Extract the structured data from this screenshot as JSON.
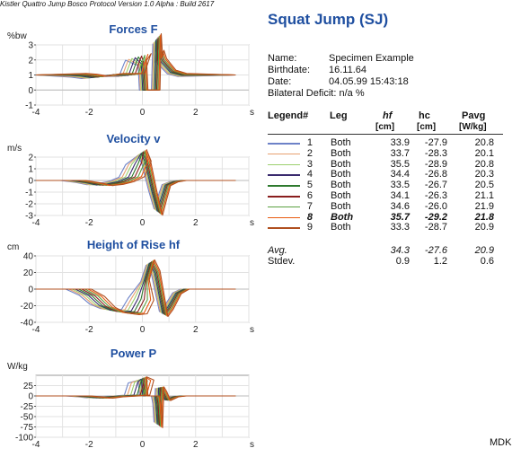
{
  "header": {
    "title": "Squat Jump (SJ)",
    "subtitle": "Kistler Quattro Jump Bosco Protocol Version 1.0 Alpha : Build 2617"
  },
  "info": [
    {
      "label": "Name:",
      "value": "Specimen Example"
    },
    {
      "label": "Birthdate:",
      "value": "16.11.64"
    },
    {
      "label": "Date:",
      "value": "04.05.99 15:43:18"
    },
    {
      "label": "Bilateral Deficit: n/a %",
      "value": ""
    }
  ],
  "table": {
    "headers": [
      "Legend#",
      "Leg",
      "hf",
      "hc",
      "Pavg"
    ],
    "units": [
      "",
      "",
      "[cm]",
      "[cm]",
      "[W/kg]"
    ],
    "rows": [
      {
        "n": "1",
        "leg": "Both",
        "hf": "33.9",
        "hc": "-27.9",
        "pavg": "20.8",
        "color": "#6d82c8",
        "bold": false
      },
      {
        "n": "2",
        "leg": "Both",
        "hf": "33.7",
        "hc": "-28.3",
        "pavg": "20.1",
        "color": "#e8a070",
        "bold": false
      },
      {
        "n": "3",
        "leg": "Both",
        "hf": "35.5",
        "hc": "-28.9",
        "pavg": "20.8",
        "color": "#9ccf6e",
        "bold": false
      },
      {
        "n": "4",
        "leg": "Both",
        "hf": "34.4",
        "hc": "-26.8",
        "pavg": "20.3",
        "color": "#3a2a6e",
        "bold": false
      },
      {
        "n": "5",
        "leg": "Both",
        "hf": "33.5",
        "hc": "-26.7",
        "pavg": "20.5",
        "color": "#2e7a2e",
        "bold": false
      },
      {
        "n": "6",
        "leg": "Both",
        "hf": "34.1",
        "hc": "-26.3",
        "pavg": "21.1",
        "color": "#8a1e1e",
        "bold": false
      },
      {
        "n": "7",
        "leg": "Both",
        "hf": "34.6",
        "hc": "-26.0",
        "pavg": "21.9",
        "color": "#5aa040",
        "bold": false
      },
      {
        "n": "8",
        "leg": "Both",
        "hf": "35.7",
        "hc": "-29.2",
        "pavg": "21.8",
        "color": "#e85a10",
        "bold": true
      },
      {
        "n": "9",
        "leg": "Both",
        "hf": "33.3",
        "hc": "-28.7",
        "pavg": "20.9",
        "color": "#b05020",
        "bold": false
      }
    ],
    "summary": [
      {
        "label": "Avg.",
        "hf": "34.3",
        "hc": "-27.6",
        "pavg": "20.9"
      },
      {
        "label": "Stdev.",
        "hf": "0.9",
        "hc": "1.2",
        "pavg": "0.6"
      }
    ]
  },
  "footer": "MDK",
  "chart_data": [
    {
      "type": "line",
      "title": "Forces F",
      "ylabel": "%bw",
      "xlabel": "s",
      "xlim": [
        -4,
        4
      ],
      "ylim": [
        -1,
        3
      ],
      "xticks": [
        "-4",
        "-2",
        "0",
        "2"
      ],
      "yticks": [
        "3",
        "2",
        "1",
        "0",
        "-1"
      ],
      "grid": true,
      "series_shape": "force",
      "x": [
        -4,
        -2.6,
        -2.2,
        -1.8,
        -1.5,
        -1.2,
        -0.4,
        -0.2,
        -0.15,
        0,
        0.05,
        0.5,
        0.55,
        0.6,
        0.65,
        0.75,
        0.9,
        1.1,
        1.5,
        3.5
      ],
      "y": [
        1,
        1,
        0.95,
        0.85,
        0.9,
        1,
        1,
        2.0,
        2.2,
        1.8,
        0,
        0,
        3.4,
        2.0,
        2.4,
        1.9,
        1.6,
        1.2,
        1,
        1
      ]
    },
    {
      "type": "line",
      "title": "Velocity v",
      "ylabel": "m/s",
      "xlabel": "s",
      "xlim": [
        -4,
        4
      ],
      "ylim": [
        -3,
        2
      ],
      "xticks": [
        "-4",
        "-2",
        "0",
        "2"
      ],
      "yticks": [
        "2",
        "1",
        "0",
        "-1",
        "-2",
        "-3"
      ],
      "grid": true,
      "series_shape": "velocity",
      "x": [
        -4,
        -2.6,
        -2.0,
        -1.6,
        -1.2,
        -0.8,
        -0.4,
        -0.15,
        0,
        0.15,
        0.4,
        0.6,
        0.75,
        0.9,
        1.2,
        1.5,
        3.5
      ],
      "y": [
        0,
        0,
        -0.2,
        -0.4,
        -0.3,
        -0.1,
        0.3,
        1.5,
        2.4,
        1.5,
        -1.0,
        -2.7,
        -1.5,
        -0.4,
        -0.1,
        0,
        0
      ]
    },
    {
      "type": "line",
      "title": "Height of Rise hf",
      "ylabel": "cm",
      "xlabel": "s",
      "xlim": [
        -4,
        4
      ],
      "ylim": [
        -40,
        40
      ],
      "xticks": [
        "-4",
        "-2",
        "0",
        "2"
      ],
      "yticks": [
        "40",
        "20",
        "0",
        "-20",
        "-40"
      ],
      "grid": true,
      "series_shape": "height",
      "x": [
        -4,
        -2.4,
        -1.9,
        -1.5,
        -1.1,
        -0.6,
        -0.3,
        -0.05,
        0.1,
        0.3,
        0.5,
        0.65,
        0.8,
        1.0,
        1.3,
        1.6,
        3.5
      ],
      "y": [
        0,
        0,
        -8,
        -20,
        -26,
        -28,
        -27,
        -12,
        10,
        32,
        20,
        -5,
        -30,
        -22,
        -5,
        0,
        0
      ]
    },
    {
      "type": "line",
      "title": "Power P",
      "ylabel": "W/kg",
      "xlabel": "s",
      "xlim": [
        -4,
        4
      ],
      "ylim": [
        -100,
        50
      ],
      "xticks": [
        "-4",
        "-2",
        "0",
        "2"
      ],
      "yticks": [
        "25",
        "0",
        "-25",
        "-50",
        "-75",
        "-100"
      ],
      "grid": true,
      "series_shape": "power",
      "x": [
        -4,
        -2.4,
        -2.0,
        -1.6,
        -1.2,
        -0.6,
        -0.2,
        -0.05,
        0.0,
        0.05,
        0.5,
        0.55,
        0.6,
        0.65,
        0.75,
        0.9,
        1.2,
        1.5,
        3.5
      ],
      "y": [
        0,
        0,
        -2,
        -5,
        -2,
        0,
        2,
        35,
        42,
        0,
        0,
        -20,
        -70,
        20,
        10,
        -10,
        -2,
        0,
        0
      ]
    }
  ]
}
